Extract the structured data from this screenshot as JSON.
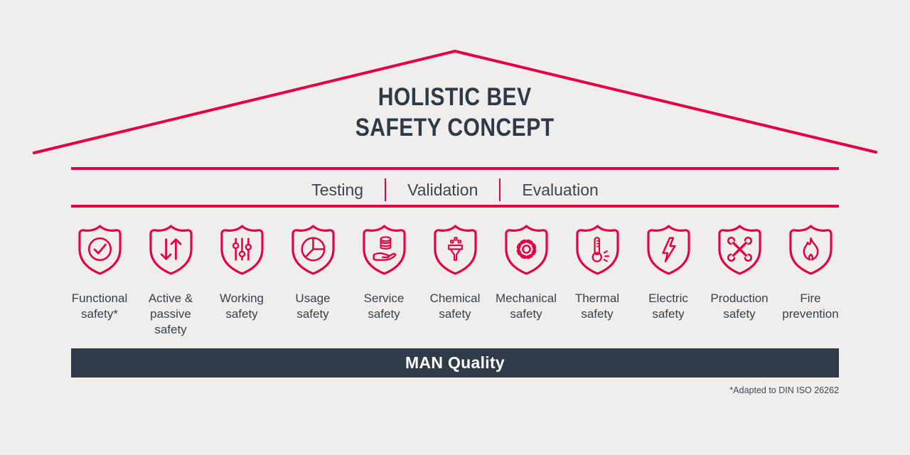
{
  "colors": {
    "accent": "#E40045",
    "dark": "#2E3A48",
    "text": "#3A4551",
    "background": "#EFEEEC",
    "bar_background": "#2F3B49",
    "bar_text": "#FFFFFF"
  },
  "title": {
    "line1": "HOLISTIC BEV",
    "line2": "SAFETY CONCEPT"
  },
  "phases": [
    {
      "label": "Testing"
    },
    {
      "label": "Validation"
    },
    {
      "label": "Evaluation"
    }
  ],
  "pillars": [
    {
      "icon": "shield-check-icon",
      "label": "Functional\nsafety*"
    },
    {
      "icon": "shield-arrows-icon",
      "label": "Active &\npassive\nsafety"
    },
    {
      "icon": "shield-sliders-icon",
      "label": "Working\nsafety"
    },
    {
      "icon": "shield-pie-icon",
      "label": "Usage\nsafety"
    },
    {
      "icon": "shield-hand-coins-icon",
      "label": "Service\nsafety"
    },
    {
      "icon": "shield-funnel-icon",
      "label": "Chemical\nsafety"
    },
    {
      "icon": "shield-gear-icon",
      "label": "Mechanical\nsafety"
    },
    {
      "icon": "shield-thermometer-icon",
      "label": "Thermal\nsafety"
    },
    {
      "icon": "shield-bolt-icon",
      "label": "Electric\nsafety"
    },
    {
      "icon": "shield-wrenches-icon",
      "label": "Production\nsafety"
    },
    {
      "icon": "shield-flame-icon",
      "label": "Fire\nprevention"
    }
  ],
  "quality_bar": {
    "label": "MAN Quality"
  },
  "footnote": "*Adapted to DIN ISO 26262"
}
